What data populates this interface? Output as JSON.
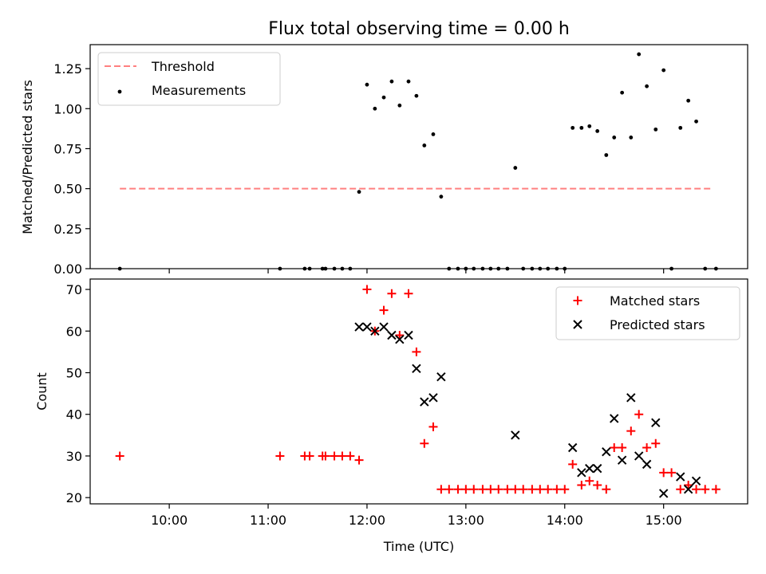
{
  "chart_data": [
    {
      "type": "scatter",
      "title": "Flux total observing time = 0.00 h",
      "ylabel": "Matched/Predicted stars",
      "xlabel": "",
      "x_unit": "hours (UTC)",
      "xlim": [
        9.2,
        15.85
      ],
      "ylim": [
        0,
        1.4
      ],
      "yticks": [
        0.0,
        0.25,
        0.5,
        0.75,
        1.0,
        1.25
      ],
      "ytick_labels": [
        "0.00",
        "0.25",
        "0.50",
        "0.75",
        "1.00",
        "1.25"
      ],
      "xticks": [
        10,
        11,
        12,
        13,
        14,
        15
      ],
      "grid": false,
      "legend_position": "top-left",
      "threshold": {
        "name": "Threshold",
        "y": 0.5,
        "x_range": [
          9.5,
          15.5
        ],
        "color": "#ff8080",
        "style": "dashed"
      },
      "series": [
        {
          "name": "Measurements",
          "color": "#000000",
          "marker": "dot",
          "points": [
            [
              9.5,
              0.0
            ],
            [
              11.12,
              0.0
            ],
            [
              11.37,
              0.0
            ],
            [
              11.42,
              0.0
            ],
            [
              11.55,
              0.0
            ],
            [
              11.58,
              0.0
            ],
            [
              11.67,
              0.0
            ],
            [
              11.75,
              0.0
            ],
            [
              11.83,
              0.0
            ],
            [
              11.92,
              0.48
            ],
            [
              12.0,
              1.15
            ],
            [
              12.08,
              1.0
            ],
            [
              12.17,
              1.07
            ],
            [
              12.25,
              1.17
            ],
            [
              12.33,
              1.02
            ],
            [
              12.42,
              1.17
            ],
            [
              12.5,
              1.08
            ],
            [
              12.58,
              0.77
            ],
            [
              12.67,
              0.84
            ],
            [
              12.75,
              0.45
            ],
            [
              12.83,
              0.0
            ],
            [
              12.92,
              0.0
            ],
            [
              13.0,
              0.0
            ],
            [
              13.08,
              0.0
            ],
            [
              13.17,
              0.0
            ],
            [
              13.25,
              0.0
            ],
            [
              13.33,
              0.0
            ],
            [
              13.42,
              0.0
            ],
            [
              13.5,
              0.63
            ],
            [
              13.58,
              0.0
            ],
            [
              13.67,
              0.0
            ],
            [
              13.75,
              0.0
            ],
            [
              13.83,
              0.0
            ],
            [
              13.92,
              0.0
            ],
            [
              14.0,
              0.0
            ],
            [
              14.08,
              0.88
            ],
            [
              14.17,
              0.88
            ],
            [
              14.25,
              0.89
            ],
            [
              14.33,
              0.86
            ],
            [
              14.42,
              0.71
            ],
            [
              14.5,
              0.82
            ],
            [
              14.58,
              1.1
            ],
            [
              14.67,
              0.82
            ],
            [
              14.75,
              1.34
            ],
            [
              14.83,
              1.14
            ],
            [
              14.92,
              0.87
            ],
            [
              15.0,
              1.24
            ],
            [
              15.08,
              0.0
            ],
            [
              15.17,
              0.88
            ],
            [
              15.25,
              1.05
            ],
            [
              15.33,
              0.92
            ],
            [
              15.42,
              0.0
            ],
            [
              15.53,
              0.0
            ]
          ]
        }
      ]
    },
    {
      "type": "scatter",
      "title": "",
      "xlabel": "Time (UTC)",
      "ylabel": "Count",
      "x_unit": "hours (UTC)",
      "xlim": [
        9.2,
        15.85
      ],
      "ylim": [
        18.5,
        72.5
      ],
      "yticks": [
        20,
        30,
        40,
        50,
        60,
        70
      ],
      "xticks": [
        10,
        11,
        12,
        13,
        14,
        15
      ],
      "xtick_labels": [
        "10:00",
        "11:00",
        "12:00",
        "13:00",
        "14:00",
        "15:00"
      ],
      "grid": false,
      "legend_position": "top-right",
      "series": [
        {
          "name": "Matched stars",
          "color": "#ff0000",
          "marker": "plus",
          "points": [
            [
              9.5,
              30
            ],
            [
              11.12,
              30
            ],
            [
              11.37,
              30
            ],
            [
              11.42,
              30
            ],
            [
              11.55,
              30
            ],
            [
              11.58,
              30
            ],
            [
              11.67,
              30
            ],
            [
              11.75,
              30
            ],
            [
              11.83,
              30
            ],
            [
              11.92,
              29
            ],
            [
              12.0,
              70
            ],
            [
              12.08,
              60
            ],
            [
              12.17,
              65
            ],
            [
              12.25,
              69
            ],
            [
              12.33,
              59
            ],
            [
              12.42,
              69
            ],
            [
              12.5,
              55
            ],
            [
              12.58,
              33
            ],
            [
              12.67,
              37
            ],
            [
              12.75,
              22
            ],
            [
              12.83,
              22
            ],
            [
              12.92,
              22
            ],
            [
              13.0,
              22
            ],
            [
              13.08,
              22
            ],
            [
              13.17,
              22
            ],
            [
              13.25,
              22
            ],
            [
              13.33,
              22
            ],
            [
              13.42,
              22
            ],
            [
              13.5,
              22
            ],
            [
              13.58,
              22
            ],
            [
              13.67,
              22
            ],
            [
              13.75,
              22
            ],
            [
              13.83,
              22
            ],
            [
              13.92,
              22
            ],
            [
              14.0,
              22
            ],
            [
              14.08,
              28
            ],
            [
              14.17,
              23
            ],
            [
              14.25,
              24
            ],
            [
              14.33,
              23
            ],
            [
              14.42,
              22
            ],
            [
              14.5,
              32
            ],
            [
              14.58,
              32
            ],
            [
              14.67,
              36
            ],
            [
              14.75,
              40
            ],
            [
              14.83,
              32
            ],
            [
              14.92,
              33
            ],
            [
              15.0,
              26
            ],
            [
              15.08,
              26
            ],
            [
              15.17,
              22
            ],
            [
              15.25,
              23
            ],
            [
              15.33,
              22
            ],
            [
              15.42,
              22
            ],
            [
              15.53,
              22
            ]
          ]
        },
        {
          "name": "Predicted stars",
          "color": "#000000",
          "marker": "x",
          "points": [
            [
              11.92,
              61
            ],
            [
              12.0,
              61
            ],
            [
              12.08,
              60
            ],
            [
              12.17,
              61
            ],
            [
              12.25,
              59
            ],
            [
              12.33,
              58
            ],
            [
              12.42,
              59
            ],
            [
              12.5,
              51
            ],
            [
              12.58,
              43
            ],
            [
              12.67,
              44
            ],
            [
              12.75,
              49
            ],
            [
              13.5,
              35
            ],
            [
              14.08,
              32
            ],
            [
              14.17,
              26
            ],
            [
              14.25,
              27
            ],
            [
              14.33,
              27
            ],
            [
              14.42,
              31
            ],
            [
              14.5,
              39
            ],
            [
              14.58,
              29
            ],
            [
              14.67,
              44
            ],
            [
              14.75,
              30
            ],
            [
              14.83,
              28
            ],
            [
              14.92,
              38
            ],
            [
              15.0,
              21
            ],
            [
              15.17,
              25
            ],
            [
              15.25,
              22
            ],
            [
              15.33,
              24
            ]
          ]
        }
      ]
    }
  ]
}
